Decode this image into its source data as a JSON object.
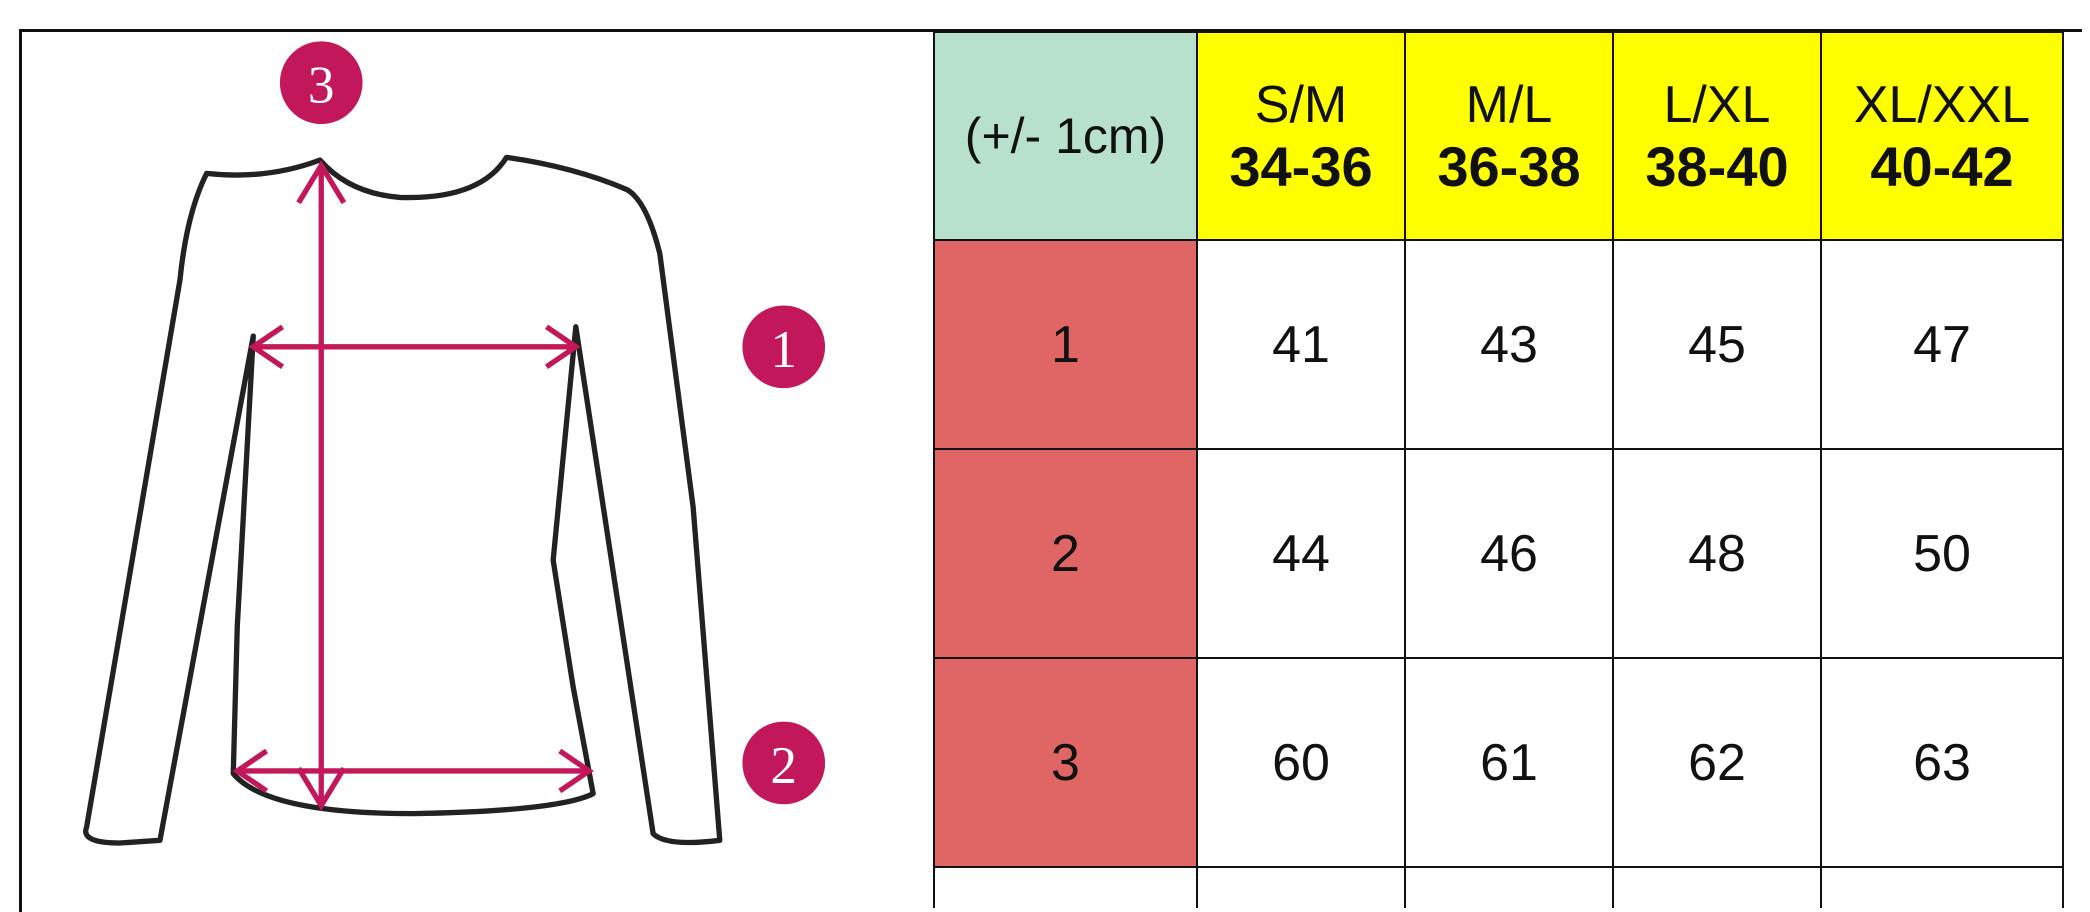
{
  "colors": {
    "note_bg": "#b7e1cd",
    "size_bg": "#ffff00",
    "row_label_bg": "#e06666",
    "marker": "#c2185b",
    "outline": "#222222"
  },
  "diagram": {
    "markers": [
      "3",
      "1",
      "2"
    ]
  },
  "table": {
    "note": "(+/- 1cm)",
    "sizes": [
      {
        "label": "S/M",
        "range": "34-36"
      },
      {
        "label": "M/L",
        "range": "36-38"
      },
      {
        "label": "L/XL",
        "range": "38-40"
      },
      {
        "label": "XL/XXL",
        "range": "40-42"
      }
    ],
    "rows": [
      {
        "label": "1",
        "values": [
          "41",
          "43",
          "45",
          "47"
        ]
      },
      {
        "label": "2",
        "values": [
          "44",
          "46",
          "48",
          "50"
        ]
      },
      {
        "label": "3",
        "values": [
          "60",
          "61",
          "62",
          "63"
        ]
      }
    ]
  }
}
